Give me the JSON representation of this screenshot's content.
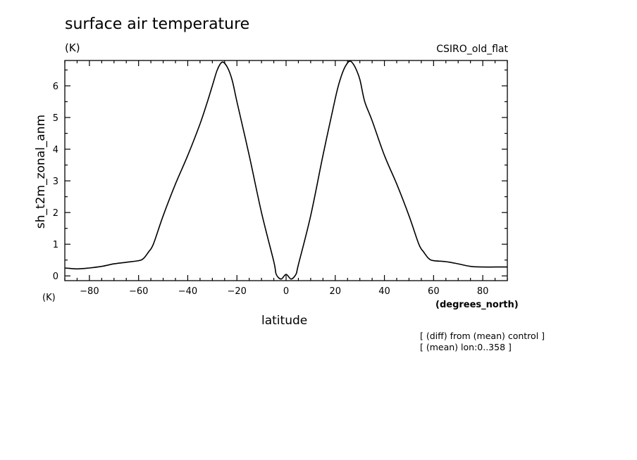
{
  "chart_data": {
    "type": "line",
    "title": "surface air temperature",
    "units_label": "(K)",
    "model_label": "CSIRO_old_flat",
    "xlabel": "latitude",
    "x_units": "(degrees_north)",
    "ylabel": "sh_t2m_zonal_anm",
    "y_units_label": "(K)",
    "notes": [
      "[ (diff) from (mean) control ]",
      "[ (mean) lon:0..358 ]"
    ],
    "xlim": [
      -90,
      90
    ],
    "ylim": [
      -0.15,
      6.8
    ],
    "xticks": [
      -80,
      -60,
      -40,
      -20,
      0,
      20,
      40,
      60,
      80
    ],
    "yticks": [
      0,
      1,
      2,
      3,
      4,
      5,
      6
    ],
    "grid": false,
    "line_color": "#000000",
    "series": [
      {
        "x": [
          -90,
          -85,
          -80,
          -75,
          -70,
          -65,
          -60,
          -58,
          -56,
          -54,
          -50,
          -45,
          -40,
          -35,
          -32,
          -30,
          -28,
          -26,
          -24,
          -22,
          -20,
          -15,
          -10,
          -5,
          -4,
          -2,
          0,
          2,
          4,
          5,
          10,
          15,
          20,
          22,
          24,
          26,
          28,
          30,
          32,
          35,
          40,
          45,
          50,
          54,
          56,
          58,
          60,
          65,
          70,
          75,
          80,
          85,
          90
        ],
        "y": [
          0.25,
          0.22,
          0.25,
          0.3,
          0.38,
          0.43,
          0.48,
          0.55,
          0.75,
          1.0,
          1.9,
          2.9,
          3.8,
          4.8,
          5.5,
          6.0,
          6.5,
          6.75,
          6.6,
          6.2,
          5.5,
          3.8,
          2.0,
          0.45,
          0.05,
          -0.1,
          0.05,
          -0.1,
          0.05,
          0.35,
          1.9,
          3.8,
          5.6,
          6.2,
          6.6,
          6.78,
          6.6,
          6.2,
          5.5,
          4.9,
          3.8,
          2.9,
          1.9,
          1.0,
          0.75,
          0.55,
          0.48,
          0.45,
          0.38,
          0.3,
          0.28,
          0.28,
          0.28
        ]
      }
    ]
  }
}
